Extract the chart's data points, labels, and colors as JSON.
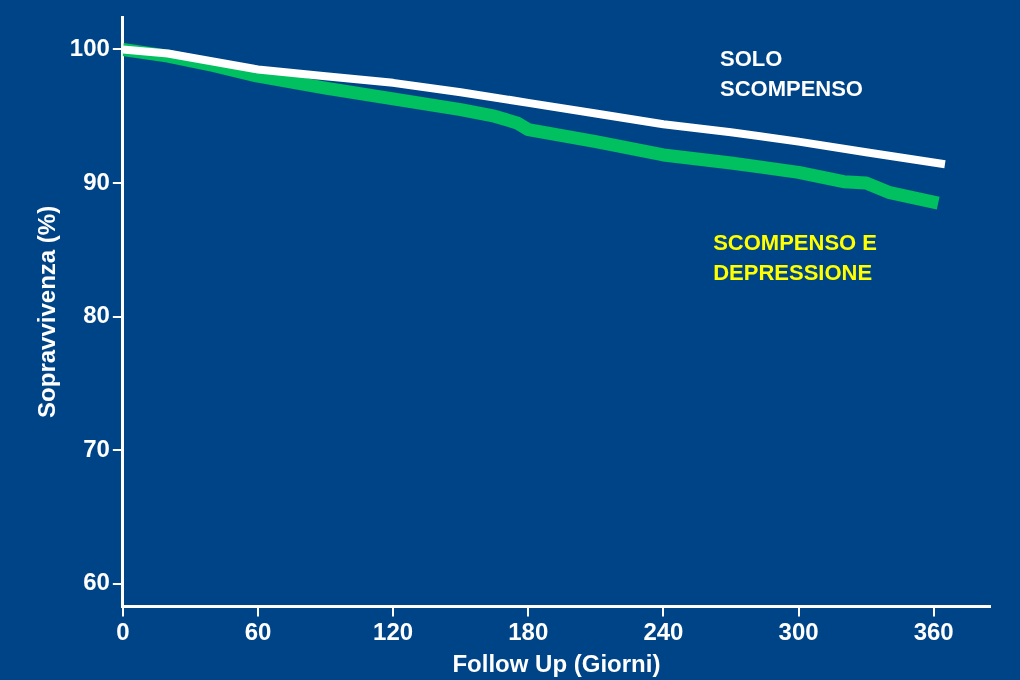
{
  "chart_data": {
    "type": "line",
    "xlabel": "Follow Up (Giorni)",
    "ylabel": "Sopravvivenza (%)",
    "xlim": [
      0,
      385
    ],
    "xticks": [
      0,
      60,
      120,
      180,
      240,
      300,
      360
    ],
    "ylim": [
      58.3,
      102.4
    ],
    "yticks": [
      60,
      70,
      80,
      90,
      100
    ],
    "grid": false,
    "legend": false,
    "marker": "none",
    "series": [
      {
        "name": "SOLO SCOMPENSO",
        "color": "#ffffff",
        "x": [
          0,
          20,
          40,
          60,
          90,
          120,
          150,
          180,
          210,
          240,
          270,
          300,
          330,
          365
        ],
        "values": [
          100,
          99.7,
          99.1,
          98.5,
          98,
          97.5,
          96.8,
          96,
          95.2,
          94.4,
          93.8,
          93.1,
          92.3,
          91.4
        ]
      },
      {
        "name": "SCOMPENSO E DEPRESSIONE",
        "color": "#00c060",
        "x": [
          0,
          20,
          40,
          60,
          90,
          120,
          150,
          165,
          175,
          180,
          210,
          240,
          270,
          300,
          320,
          330,
          340,
          362
        ],
        "values": [
          100,
          99.5,
          98.8,
          98,
          97.1,
          96.3,
          95.5,
          95,
          94.5,
          94,
          93.1,
          92.1,
          91.5,
          90.8,
          90.1,
          90,
          89.3,
          88.5
        ]
      }
    ]
  }
}
